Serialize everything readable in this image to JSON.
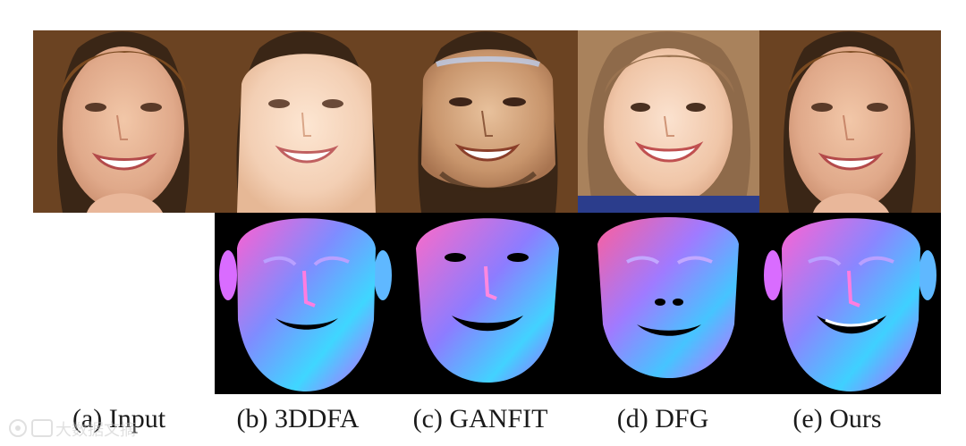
{
  "captions": {
    "a": "(a) Input",
    "b": "(b) 3DDFA",
    "c": "(c) GANFIT",
    "d": "(d) DFG",
    "e": "(e) Ours"
  },
  "watermark": {
    "text": "大数据文摘"
  }
}
